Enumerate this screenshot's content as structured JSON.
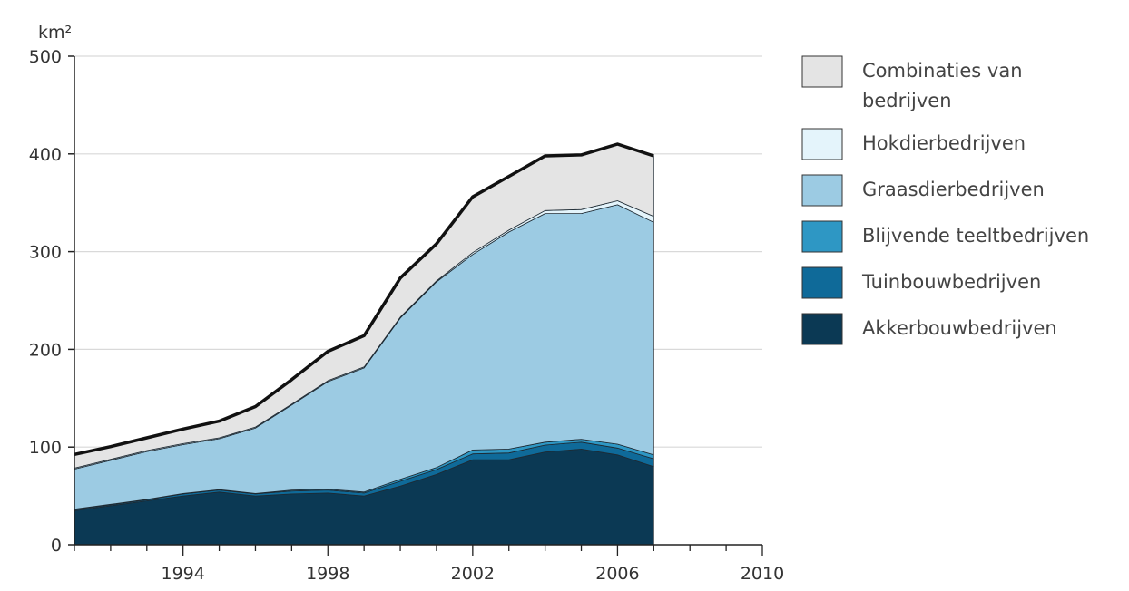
{
  "chart_data": {
    "type": "area",
    "stacked": true,
    "ylabel": "km²",
    "xlabel": "",
    "xlim": [
      1991,
      2010
    ],
    "ylim": [
      0,
      500
    ],
    "x_ticks": [
      1994,
      1998,
      2002,
      2006,
      2010
    ],
    "y_ticks": [
      0,
      100,
      200,
      300,
      400,
      500
    ],
    "grid": "horizontal",
    "legend_position": "right",
    "x": [
      1991,
      1992,
      1993,
      1994,
      1995,
      1996,
      1997,
      1998,
      1999,
      2000,
      2001,
      2002,
      2003,
      2004,
      2005,
      2006,
      2007
    ],
    "series": [
      {
        "name": "Akkerbouwbedrijven",
        "color": "#0b3954",
        "values": [
          35,
          40,
          45,
          50,
          54,
          50,
          52,
          53,
          50,
          60,
          72,
          87,
          87,
          95,
          98,
          92,
          80
        ]
      },
      {
        "name": "Tuinbouwbedrijven",
        "color": "#0f6a99",
        "values": [
          1,
          1,
          1,
          2,
          2,
          2,
          3,
          3,
          3,
          5,
          5,
          6,
          7,
          7,
          7,
          7,
          8
        ]
      },
      {
        "name": "Blijvende teeltbedrijven",
        "color": "#2e97c4",
        "values": [
          0.5,
          0.5,
          0.5,
          0.5,
          0.5,
          0.5,
          1,
          1,
          1,
          2,
          2,
          4,
          4,
          3,
          3,
          4,
          4
        ]
      },
      {
        "name": "Graasdierbedrijven",
        "color": "#9ccbe3",
        "values": [
          41,
          45,
          49,
          50,
          52,
          67,
          87,
          110,
          127,
          165,
          190,
          200,
          222,
          234,
          231,
          245,
          238
        ]
      },
      {
        "name": "Hokdierbedrijven",
        "color": "#e4f4fb",
        "values": [
          1,
          1,
          1,
          1,
          1,
          1,
          1,
          1,
          1,
          1,
          1,
          2,
          2,
          3,
          4,
          4,
          6
        ]
      },
      {
        "name": "Combinaties van bedrijven",
        "color": "#e4e4e4",
        "values": [
          14,
          13,
          13,
          15,
          17,
          21,
          25,
          30,
          32,
          40,
          38,
          57,
          55,
          56,
          56,
          58,
          62
        ]
      }
    ]
  }
}
